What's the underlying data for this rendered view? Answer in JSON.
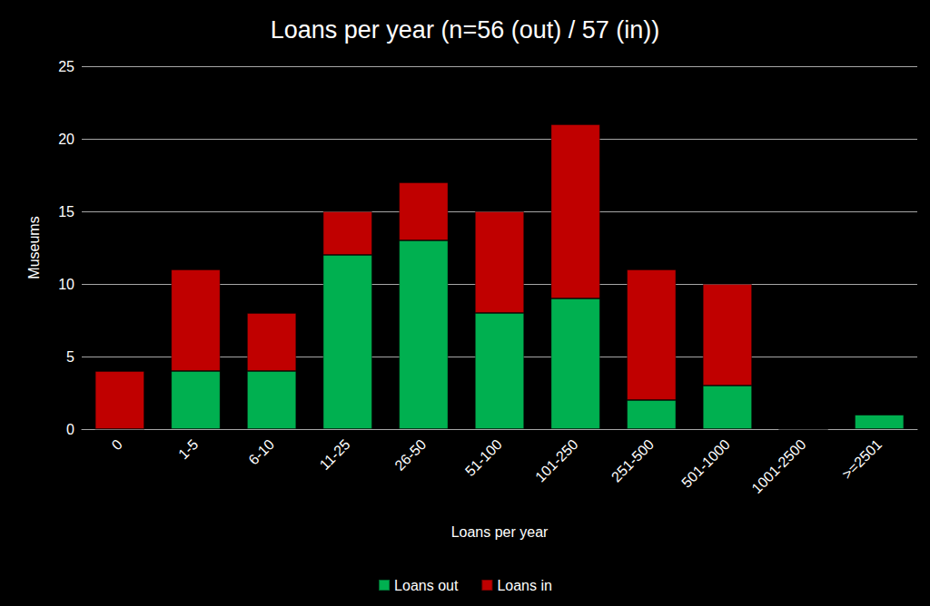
{
  "chart_data": {
    "type": "bar",
    "title": "Loans per year (n=56 (out) / 57 (in))",
    "x_label": "Loans per year",
    "y_label": "Museums",
    "categories": [
      "0",
      "1-5",
      "6-10",
      "11-25",
      "26-50",
      "51-100",
      "101-250",
      "251-500",
      "501-1000",
      "1001-2500",
      ">=2501"
    ],
    "series": [
      {
        "name": "Loans out",
        "color": "#00b050",
        "values": [
          0,
          4,
          4,
          12,
          13,
          8,
          9,
          2,
          3,
          0,
          1
        ]
      },
      {
        "name": "Loans in",
        "color": "#c00000",
        "values": [
          4,
          7,
          4,
          3,
          4,
          7,
          12,
          9,
          7,
          0,
          0
        ]
      }
    ],
    "ylim": [
      0,
      25
    ],
    "yticks": [
      0,
      5,
      10,
      15,
      20,
      25
    ],
    "grid": true,
    "stacked": true,
    "legend": "bottom"
  }
}
